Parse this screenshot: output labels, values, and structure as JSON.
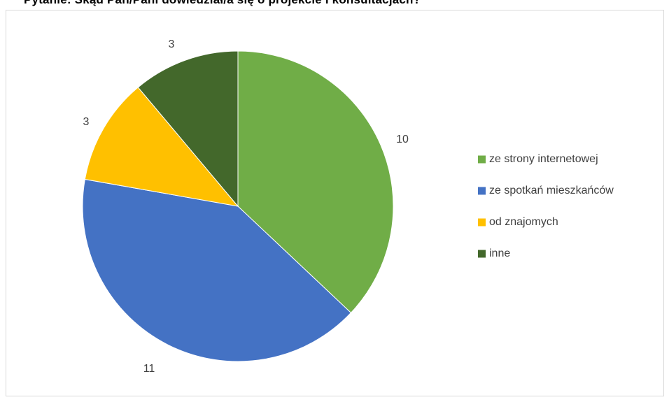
{
  "chart_data": {
    "type": "pie",
    "title": "Pytanie: Skąd Pan/Pani dowiedział/a się o projekcie i konsultacjach?",
    "categories": [
      "ze strony internetowej",
      "ze spotkań mieszkańców",
      "od znajomych",
      "inne"
    ],
    "values": [
      10,
      11,
      3,
      3
    ],
    "colors": [
      "#70ad47",
      "#4472c4",
      "#ffc000",
      "#43682b"
    ],
    "legend_position": "right",
    "start_angle": "12 o'clock",
    "direction": "clockwise"
  }
}
